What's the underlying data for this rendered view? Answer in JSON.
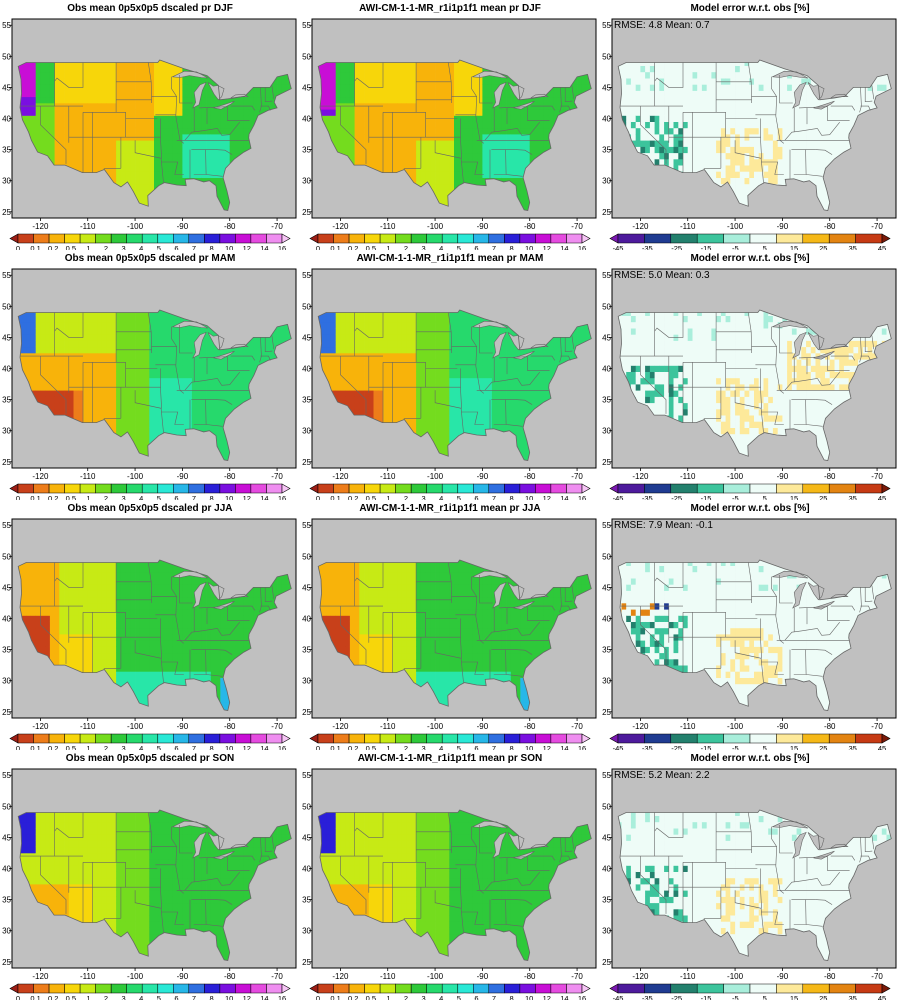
{
  "rows": [
    {
      "season": "DJF",
      "obs_title": "Obs mean 0p5x0p5 dscaled pr DJF",
      "model_title": "AWI-CM-1-1-MR_r1i1p1f1 mean pr DJF",
      "error_title": "Model error w.r.t. obs [%]",
      "stats": "RMSE: 4.8  Mean: 0.7"
    },
    {
      "season": "MAM",
      "obs_title": "Obs mean 0p5x0p5 dscaled pr MAM",
      "model_title": "AWI-CM-1-1-MR_r1i1p1f1 mean pr MAM",
      "error_title": "Model error w.r.t. obs [%]",
      "stats": "RMSE: 5.0  Mean: 0.3"
    },
    {
      "season": "JJA",
      "obs_title": "Obs mean 0p5x0p5 dscaled pr JJA",
      "model_title": "AWI-CM-1-1-MR_r1i1p1f1 mean pr JJA",
      "error_title": "Model error w.r.t. obs [%]",
      "stats": "RMSE: 7.9  Mean: -0.1"
    },
    {
      "season": "SON",
      "obs_title": "Obs mean 0p5x0p5 dscaled pr SON",
      "model_title": "AWI-CM-1-1-MR_r1i1p1f1 mean pr SON",
      "error_title": "Model error w.r.t. obs [%]",
      "stats": "RMSE: 5.2  Mean: 2.2"
    }
  ],
  "axes": {
    "lon_ticks": [
      "-120",
      "-110",
      "-100",
      "-90",
      "-80",
      "-70"
    ],
    "lon_values": [
      -120,
      -110,
      -100,
      -90,
      -80,
      -70
    ],
    "lat_ticks": [
      "25",
      "30",
      "35",
      "40",
      "45",
      "50",
      "55"
    ],
    "lat_values": [
      25,
      30,
      35,
      40,
      45,
      50,
      55
    ],
    "lon_range": [
      -126,
      -66
    ],
    "lat_range": [
      24,
      56
    ]
  },
  "colorbars": {
    "precip": {
      "labels": [
        "0",
        "0.1",
        "0.2",
        "0.5",
        "1",
        "2",
        "3",
        "4",
        "5",
        "6",
        "7",
        "8",
        "10",
        "12",
        "14",
        "16"
      ],
      "colors": [
        "#9c1e16",
        "#c8401a",
        "#ed7d1a",
        "#f8b30a",
        "#f7d60a",
        "#c7ea15",
        "#74dc1e",
        "#2ec93a",
        "#26d96c",
        "#28e6a8",
        "#29e8d6",
        "#27b7e8",
        "#2f6fe0",
        "#2a1fd8",
        "#7a0fe0",
        "#c80ed6",
        "#e54be0",
        "#ef8ef0",
        "#f6c5f6"
      ]
    },
    "error": {
      "labels": [
        "-45",
        "-35",
        "-25",
        "-15",
        "-5",
        "5",
        "15",
        "25",
        "35",
        "45"
      ],
      "colors": [
        "#7a18b0",
        "#4d1a9c",
        "#1f3b91",
        "#23806d",
        "#3cc49c",
        "#a9eedb",
        "#eefcf7",
        "#fde99a",
        "#f5b817",
        "#e38412",
        "#c63a14",
        "#7a1a0a"
      ]
    }
  },
  "colors": {
    "land_gray": "#c0c0c0",
    "ocean_gray": "#c0c0c0",
    "border": "#666666",
    "frame": "#000000"
  }
}
